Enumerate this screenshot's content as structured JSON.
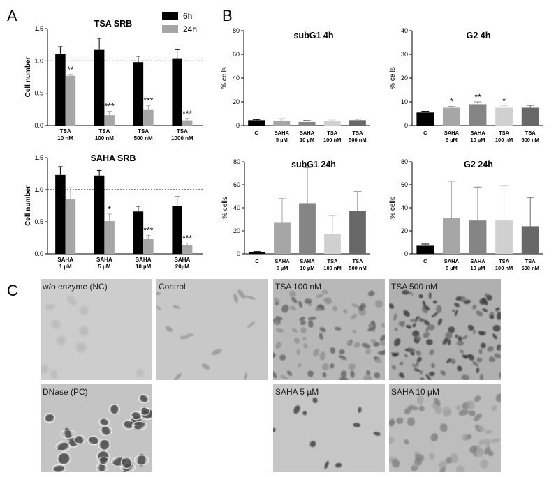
{
  "panels": {
    "A": "A",
    "B": "B",
    "C": "C"
  },
  "colors": {
    "black": "#000000",
    "gray": "#a6a6a6"
  },
  "legend": [
    {
      "name": "6h",
      "color": "#000000"
    },
    {
      "name": "24h",
      "color": "#a6a6a6"
    }
  ],
  "chart_data": [
    {
      "id": "tsa-srb",
      "type": "bar",
      "title": "TSA SRB",
      "ylabel": "Cell number",
      "ylim": [
        0,
        1.5
      ],
      "yticks": [
        "0.0",
        "0.5",
        "1.0",
        "1.5"
      ],
      "reference_line": 1.0,
      "categories": [
        [
          "TSA",
          "10 nM"
        ],
        [
          "TSA",
          "100 nM"
        ],
        [
          "TSA",
          "500 nM"
        ],
        [
          "TSA",
          "1000 nM"
        ]
      ],
      "series": [
        {
          "name": "6h",
          "color": "#000000",
          "values": [
            1.11,
            1.18,
            0.98,
            1.04
          ],
          "errors": [
            0.11,
            0.17,
            0.09,
            0.14
          ],
          "significance": [
            "",
            "",
            "",
            ""
          ]
        },
        {
          "name": "24h",
          "color": "#a6a6a6",
          "values": [
            0.77,
            0.16,
            0.24,
            0.08
          ],
          "errors": [
            0.02,
            0.06,
            0.07,
            0.03
          ],
          "significance": [
            "**",
            "***",
            "***",
            "***"
          ]
        }
      ]
    },
    {
      "id": "saha-srb",
      "type": "bar",
      "title": "SAHA SRB",
      "ylabel": "Cell number",
      "ylim": [
        0,
        1.5
      ],
      "yticks": [
        "0.0",
        "0.5",
        "1.0",
        "1.5"
      ],
      "reference_line": 1.0,
      "categories": [
        [
          "SAHA",
          "1 µM"
        ],
        [
          "SAHA",
          "5 µM"
        ],
        [
          "SAHA",
          "10 µM"
        ],
        [
          "SAHA",
          "20µM"
        ]
      ],
      "series": [
        {
          "name": "6h",
          "color": "#000000",
          "values": [
            1.23,
            1.22,
            0.66,
            0.74
          ],
          "errors": [
            0.13,
            0.08,
            0.08,
            0.15
          ],
          "significance": [
            "",
            "",
            "",
            ""
          ]
        },
        {
          "name": "24h",
          "color": "#a6a6a6",
          "values": [
            0.85,
            0.51,
            0.23,
            0.13
          ],
          "errors": [
            0.18,
            0.11,
            0.06,
            0.04
          ],
          "significance": [
            "",
            "*",
            "***",
            "***"
          ]
        }
      ]
    },
    {
      "id": "subg1-4h",
      "type": "bar",
      "title": "subG1 4h",
      "ylabel": "% cells",
      "ylim": [
        0,
        80
      ],
      "yticks": [
        "0",
        "20",
        "40",
        "60",
        "80"
      ],
      "categories": [
        [
          "C"
        ],
        [
          "SAHA",
          "5 µM"
        ],
        [
          "SAHA",
          "10 µM"
        ],
        [
          "TSA",
          "100 nM"
        ],
        [
          "TSA",
          "500 nM"
        ]
      ],
      "colors": [
        "#000000",
        "#a6a6a6",
        "#858585",
        "#d0d0d0",
        "#686868"
      ],
      "values": [
        4.5,
        4.0,
        3.0,
        3.5,
        4.5
      ],
      "errors": [
        0.6,
        1.8,
        1.4,
        1.2,
        1.0
      ],
      "significance": [
        "",
        "",
        "",
        "",
        ""
      ]
    },
    {
      "id": "g2-4h",
      "type": "bar",
      "title": "G2 4h",
      "ylabel": "% cells",
      "ylim": [
        0,
        40
      ],
      "yticks": [
        "0",
        "10",
        "20",
        "30",
        "40"
      ],
      "categories": [
        [
          "C"
        ],
        [
          "SAHA",
          "5 µM"
        ],
        [
          "SAHA",
          "10 µM"
        ],
        [
          "TSA",
          "100 nM"
        ],
        [
          "TSA",
          "500 nM"
        ]
      ],
      "colors": [
        "#000000",
        "#a6a6a6",
        "#858585",
        "#d0d0d0",
        "#686868"
      ],
      "values": [
        5.5,
        7.5,
        9.0,
        7.5,
        7.5
      ],
      "errors": [
        0.5,
        0.6,
        1.0,
        0.8,
        1.0
      ],
      "significance": [
        "",
        "*",
        "**",
        "*",
        ""
      ]
    },
    {
      "id": "subg1-24h",
      "type": "bar",
      "title": "subG1 24h",
      "ylabel": "% cells",
      "ylim": [
        0,
        80
      ],
      "yticks": [
        "0",
        "20",
        "40",
        "60",
        "80"
      ],
      "categories": [
        [
          "C"
        ],
        [
          "SAHA",
          "5 µM"
        ],
        [
          "SAHA",
          "10 µM"
        ],
        [
          "TSA",
          "100 nM"
        ],
        [
          "TSA",
          "500 nM"
        ]
      ],
      "colors": [
        "#000000",
        "#a6a6a6",
        "#858585",
        "#d0d0d0",
        "#686868"
      ],
      "values": [
        1.5,
        27,
        44,
        17,
        37
      ],
      "errors": [
        0.5,
        21,
        31,
        16,
        17
      ],
      "significance": [
        "",
        "",
        "",
        "",
        ""
      ]
    },
    {
      "id": "g2-24h",
      "type": "bar",
      "title": "G2 24h",
      "ylabel": "% cells",
      "ylim": [
        0,
        80
      ],
      "yticks": [
        "0",
        "20",
        "40",
        "60",
        "80"
      ],
      "categories": [
        [
          "C"
        ],
        [
          "SAHA",
          "5 µM"
        ],
        [
          "SAHA",
          "10 µM"
        ],
        [
          "TSA",
          "100 nM"
        ],
        [
          "TSA",
          "500 nM"
        ]
      ],
      "colors": [
        "#000000",
        "#a6a6a6",
        "#858585",
        "#d0d0d0",
        "#686868"
      ],
      "values": [
        7,
        31,
        29,
        29,
        24
      ],
      "errors": [
        1.5,
        32,
        29,
        30,
        25
      ],
      "significance": [
        "",
        "",
        "",
        "",
        ""
      ]
    }
  ],
  "micrographs": [
    {
      "label": "w/o enzyme (NC)",
      "style": "faint"
    },
    {
      "label": "Control",
      "style": "sparse"
    },
    {
      "label": "TSA 100 nM",
      "style": "dense"
    },
    {
      "label": "TSA 500 nM",
      "style": "dense-dark"
    },
    {
      "label": "DNase (PC)",
      "style": "phase"
    },
    {
      "label": "SAHA 5 µM",
      "style": "few-dark"
    },
    {
      "label": "SAHA 10 µM",
      "style": "medium"
    }
  ]
}
